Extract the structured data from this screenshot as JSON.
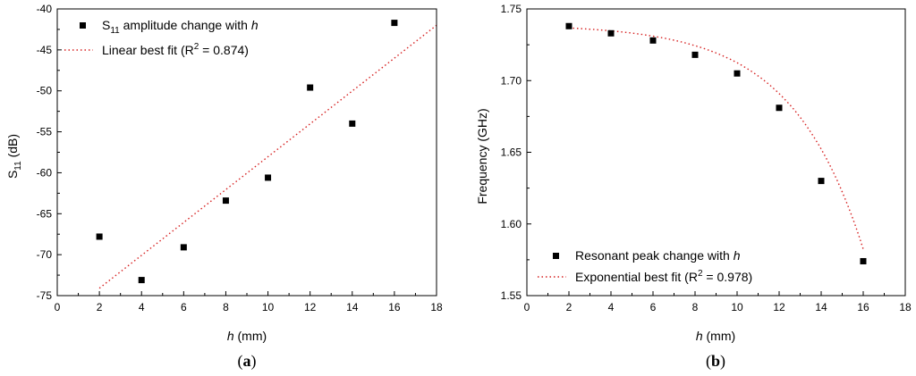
{
  "chart_data": [
    {
      "panel_label": "(a)",
      "panel_letter": "a",
      "type": "scatter",
      "xlabel": "h (mm)",
      "xlabel_var": "h",
      "xlabel_unit": " (mm)",
      "ylabel": "S11 (dB)",
      "ylabel_main": "S",
      "ylabel_sub": "11",
      "ylabel_unit": " (dB)",
      "xlim": [
        0,
        18
      ],
      "ylim": [
        -75,
        -40
      ],
      "xticks": [
        0,
        2,
        4,
        6,
        8,
        10,
        12,
        14,
        16,
        18
      ],
      "yticks": [
        -75,
        -70,
        -65,
        -60,
        -55,
        -50,
        -45,
        -40
      ],
      "grid": false,
      "legend_position": "top-left",
      "series": [
        {
          "name": "S11 amplitude change with h",
          "legend_pre": "S",
          "legend_sub": "11",
          "legend_mid": " amplitude change with ",
          "legend_var": "h",
          "kind": "markers",
          "x": [
            2,
            4,
            6,
            8,
            10,
            12,
            14,
            16
          ],
          "y": [
            -67.8,
            -73.1,
            -69.1,
            -63.4,
            -60.6,
            -49.6,
            -54.0,
            -41.7
          ]
        },
        {
          "name": "Linear best fit (R2 = 0.874)",
          "legend_pre": "Linear best fit (R",
          "legend_sup": "2",
          "legend_post": " = 0.874)",
          "kind": "dotted-line",
          "color": "#d62020",
          "fit": {
            "model": "linear",
            "x_range": [
              2,
              18
            ]
          },
          "x": [
            2,
            18
          ],
          "y": [
            -74.1,
            -42.0
          ]
        }
      ]
    },
    {
      "panel_label": "(b)",
      "panel_letter": "b",
      "type": "scatter",
      "xlabel": "h (mm)",
      "xlabel_var": "h",
      "xlabel_unit": " (mm)",
      "ylabel": "Frequency (GHz)",
      "xlim": [
        0,
        18
      ],
      "ylim": [
        1.55,
        1.75
      ],
      "xticks": [
        0,
        2,
        4,
        6,
        8,
        10,
        12,
        14,
        16,
        18
      ],
      "yticks": [
        1.55,
        1.6,
        1.65,
        1.7,
        1.75
      ],
      "ytick_labels": [
        "1.55",
        "1.60",
        "1.65",
        "1.70",
        "1.75"
      ],
      "grid": false,
      "legend_position": "bottom-left",
      "series": [
        {
          "name": "Resonant peak change with h",
          "legend_pre": "Resonant peak change with ",
          "legend_var": "h",
          "kind": "markers",
          "x": [
            2,
            4,
            6,
            8,
            10,
            12,
            14,
            16
          ],
          "y": [
            1.738,
            1.733,
            1.728,
            1.718,
            1.705,
            1.681,
            1.63,
            1.574
          ]
        },
        {
          "name": "Exponential best fit (R2 = 0.978)",
          "legend_pre": "Exponential best fit (R",
          "legend_sup": "2",
          "legend_post": " = 0.978)",
          "kind": "dotted-line",
          "color": "#d62020",
          "fit": {
            "model": "y = y0 - A*exp(x/t)",
            "y0": 1.7393,
            "A": 0.001418,
            "t": 3.4,
            "x_range": [
              2,
              16
            ]
          }
        }
      ]
    }
  ]
}
